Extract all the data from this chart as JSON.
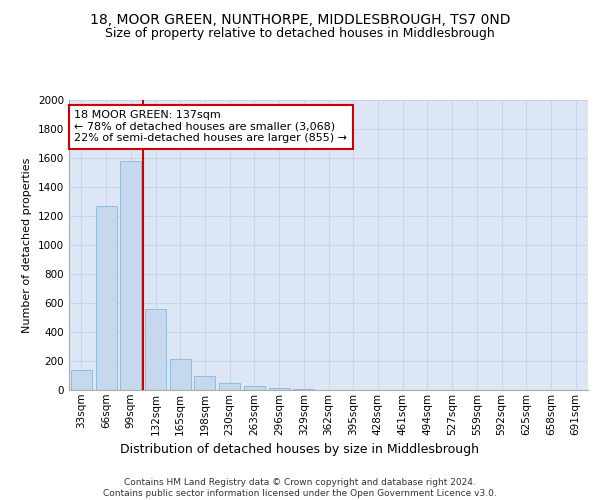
{
  "title1": "18, MOOR GREEN, NUNTHORPE, MIDDLESBROUGH, TS7 0ND",
  "title2": "Size of property relative to detached houses in Middlesbrough",
  "xlabel": "Distribution of detached houses by size in Middlesbrough",
  "ylabel": "Number of detached properties",
  "categories": [
    "33sqm",
    "66sqm",
    "99sqm",
    "132sqm",
    "165sqm",
    "198sqm",
    "230sqm",
    "263sqm",
    "296sqm",
    "329sqm",
    "362sqm",
    "395sqm",
    "428sqm",
    "461sqm",
    "494sqm",
    "527sqm",
    "559sqm",
    "592sqm",
    "625sqm",
    "658sqm",
    "691sqm"
  ],
  "values": [
    140,
    1270,
    1580,
    560,
    215,
    95,
    45,
    25,
    15,
    5,
    2,
    0,
    0,
    0,
    0,
    0,
    0,
    0,
    0,
    0,
    0
  ],
  "bar_color": "#c5d8ee",
  "bar_edge_color": "#7bafd4",
  "vline_color": "#cc0000",
  "annotation_text": "18 MOOR GREEN: 137sqm\n← 78% of detached houses are smaller (3,068)\n22% of semi-detached houses are larger (855) →",
  "annotation_box_color": "#ffffff",
  "annotation_box_edge": "#cc0000",
  "ylim": [
    0,
    2000
  ],
  "yticks": [
    0,
    200,
    400,
    600,
    800,
    1000,
    1200,
    1400,
    1600,
    1800,
    2000
  ],
  "grid_color": "#c8d4e8",
  "bg_color": "#dce6f5",
  "footnote": "Contains HM Land Registry data © Crown copyright and database right 2024.\nContains public sector information licensed under the Open Government Licence v3.0.",
  "title1_fontsize": 10,
  "title2_fontsize": 9,
  "xlabel_fontsize": 9,
  "ylabel_fontsize": 8,
  "tick_fontsize": 7.5,
  "annot_fontsize": 8,
  "footnote_fontsize": 6.5
}
